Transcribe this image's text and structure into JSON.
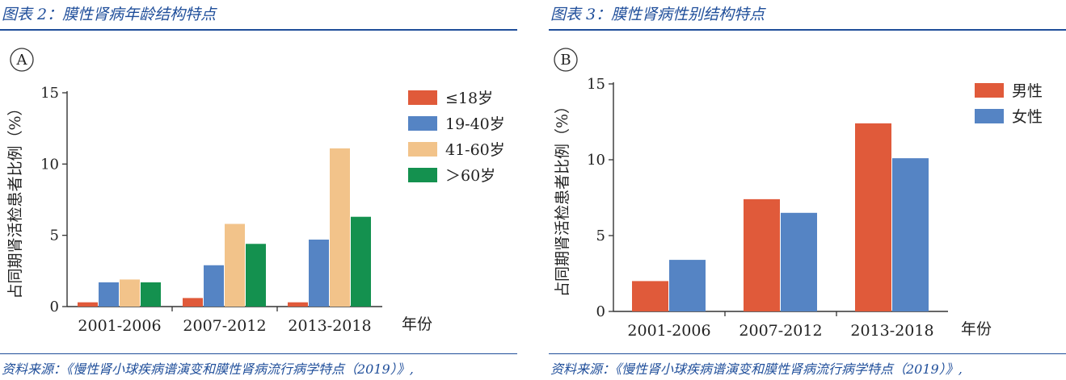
{
  "panels": [
    {
      "figure_title": "图表 2：膜性肾病年龄结构特点",
      "source": "资料来源：《慢性肾小球疾病谱演变和膜性肾病流行病学特点（2019）》,",
      "chart_data": {
        "type": "bar",
        "panel_label": "A",
        "ylabel": "占同期肾活检患者比例（%）",
        "xlabel": "年份",
        "ylim": [
          0,
          15
        ],
        "yticks": [
          0,
          5,
          10,
          15
        ],
        "categories": [
          "2001-2006",
          "2007-2012",
          "2013-2018"
        ],
        "series": [
          {
            "name": "≤18岁",
            "color": "#e05a3a",
            "values": [
              0.3,
              0.6,
              0.3
            ]
          },
          {
            "name": "19-40岁",
            "color": "#5584c4",
            "values": [
              1.7,
              2.9,
              4.7
            ]
          },
          {
            "name": "41-60岁",
            "color": "#f2c38a",
            "values": [
              1.9,
              5.8,
              11.1
            ]
          },
          {
            "name": "＞60岁",
            "color": "#14914f",
            "values": [
              1.7,
              4.4,
              6.3
            ]
          }
        ],
        "legend_position": "top-right"
      }
    },
    {
      "figure_title": "图表 3：膜性肾病性别结构特点",
      "source": "资料来源：《慢性肾小球疾病谱演变和膜性肾病流行病学特点（2019）》,",
      "chart_data": {
        "type": "bar",
        "panel_label": "B",
        "ylabel": "占同期肾活检患者比例（%）",
        "xlabel": "年份",
        "ylim": [
          0,
          15
        ],
        "yticks": [
          0,
          5,
          10,
          15
        ],
        "categories": [
          "2001-2006",
          "2007-2012",
          "2013-2018"
        ],
        "series": [
          {
            "name": "男性",
            "color": "#e05a3a",
            "values": [
              2.0,
              7.4,
              12.4
            ]
          },
          {
            "name": "女性",
            "color": "#5584c4",
            "values": [
              3.4,
              6.5,
              10.1
            ]
          }
        ],
        "legend_position": "top-right"
      }
    }
  ]
}
